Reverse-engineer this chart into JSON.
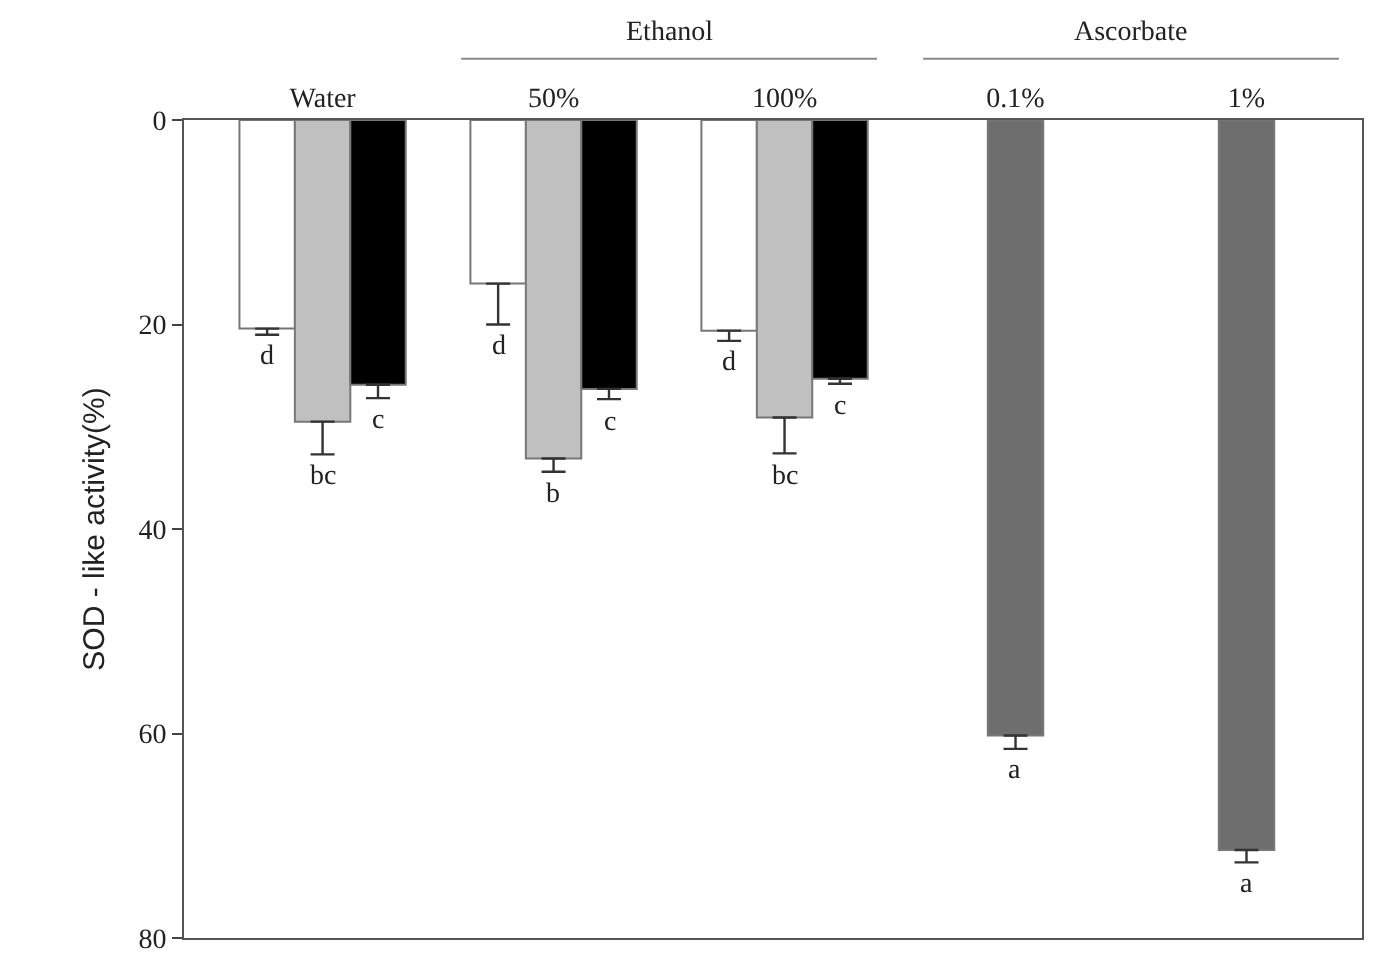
{
  "chart_data": {
    "type": "bar",
    "ylabel": "SOD - like activity(%)",
    "categories": [
      "Water",
      "50%",
      "100%",
      "0.1%",
      "1%"
    ],
    "series": [
      {
        "color": "#ffffff",
        "values": [
          20.4,
          16,
          20.6,
          null,
          null
        ],
        "errors": [
          [
            20.4,
            21
          ],
          [
            16,
            20
          ],
          [
            20.6,
            21.6
          ],
          null,
          null
        ],
        "value_labels": [
          "d",
          "d",
          "d",
          null,
          null
        ]
      },
      {
        "color": "#c0c0c0",
        "values": [
          29.5,
          33.1,
          29.1,
          null,
          null
        ],
        "errors": [
          [
            29.5,
            32.7
          ],
          [
            33.1,
            34.4
          ],
          [
            29.1,
            32.6
          ],
          null,
          null
        ],
        "value_labels": [
          "bc",
          "b",
          "bc",
          null,
          null
        ]
      },
      {
        "color": "#000000",
        "values": [
          25.9,
          26.3,
          25.3,
          null,
          null
        ],
        "errors": [
          [
            25.9,
            27.2
          ],
          [
            26.3,
            27.3
          ],
          [
            25.3,
            25.8
          ],
          null,
          null
        ],
        "value_labels": [
          "c",
          "c",
          "c",
          null,
          null
        ]
      },
      {
        "color": "#6e6e6e",
        "values": [
          null,
          null,
          null,
          60.2,
          71.4
        ],
        "errors": [
          null,
          null,
          null,
          [
            60.2,
            61.5
          ],
          [
            71.4,
            72.6
          ]
        ],
        "value_labels": [
          null,
          null,
          null,
          "a",
          "a"
        ]
      }
    ],
    "annotations": [
      "Ethanol",
      "Ascorbate"
    ],
    "ylim": [
      80,
      0
    ],
    "yticks": [
      0,
      20,
      40,
      60,
      80
    ],
    "grid": false
  }
}
